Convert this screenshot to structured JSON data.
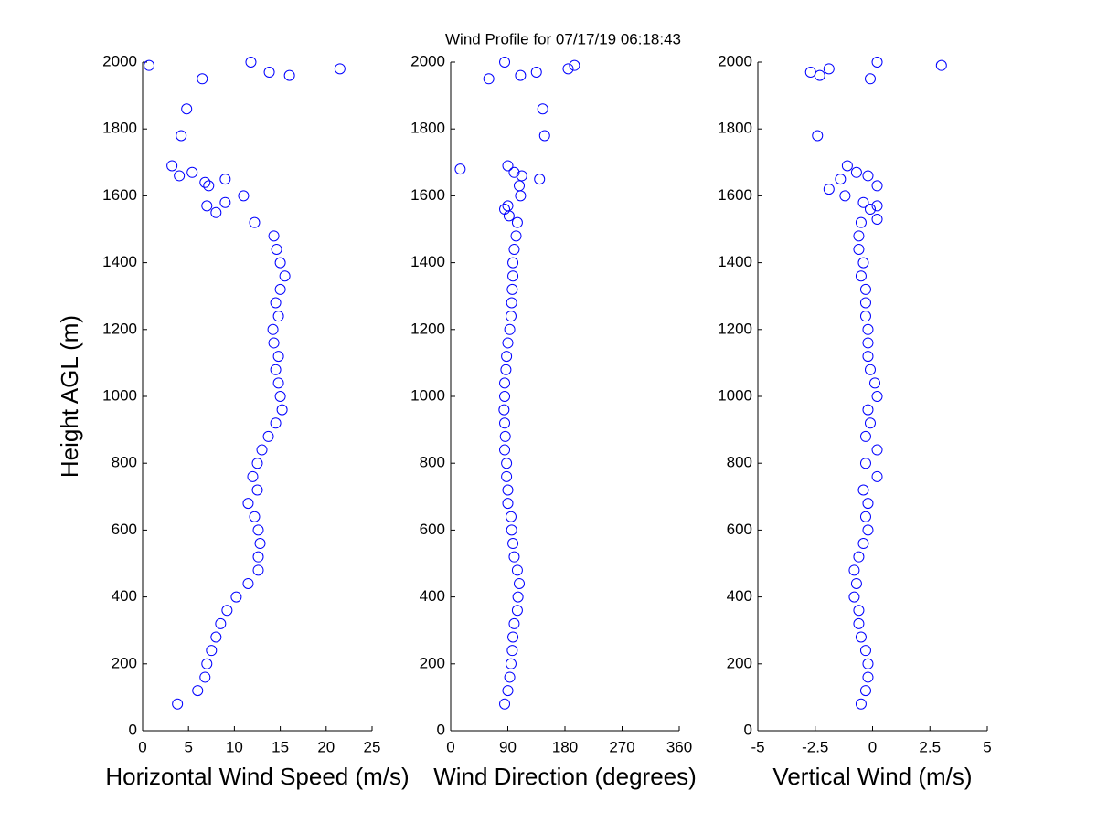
{
  "chart_data": [
    {
      "type": "scatter",
      "title": "Wind Profile for  07/17/19 06:18:43",
      "xlabel": "Horizontal Wind Speed (m/s)",
      "ylabel": "Height AGL (m)",
      "color": "#0000ff",
      "marker": "circle",
      "x": [
        3.8,
        6,
        6.8,
        7,
        7.5,
        8,
        8.5,
        9.2,
        10.2,
        11.5,
        12.6,
        12.6,
        12.8,
        12.6,
        12.2,
        11.5,
        12.5,
        12,
        12.5,
        13,
        13.7,
        14.5,
        15.2,
        15,
        14.8,
        14.5,
        14.8,
        14.3,
        14.2,
        14.8,
        14.5,
        15,
        15.5,
        15,
        14.6,
        14.3,
        12.2,
        8,
        7,
        9,
        11,
        7.2,
        6.8,
        9,
        4,
        5.4,
        3.2,
        4.2,
        4.8,
        6.5,
        16,
        13.8,
        21.5,
        0.7,
        11.8
      ],
      "y": [
        80,
        120,
        160,
        200,
        240,
        280,
        320,
        360,
        400,
        440,
        480,
        520,
        560,
        600,
        640,
        680,
        720,
        760,
        800,
        840,
        880,
        920,
        960,
        1000,
        1040,
        1080,
        1120,
        1160,
        1200,
        1240,
        1280,
        1320,
        1360,
        1400,
        1440,
        1480,
        1520,
        1550,
        1570,
        1580,
        1600,
        1630,
        1640,
        1650,
        1660,
        1670,
        1690,
        1780,
        1860,
        1950,
        1960,
        1970,
        1980,
        1990,
        2000
      ],
      "xlim": [
        0,
        25
      ],
      "xticks": [
        0,
        5,
        10,
        15,
        20,
        25
      ],
      "ylim": [
        0,
        2000
      ],
      "yticks": [
        0,
        200,
        400,
        600,
        800,
        1000,
        1200,
        1400,
        1600,
        1800,
        2000
      ]
    },
    {
      "type": "scatter",
      "xlabel": "Wind Direction (degrees)",
      "color": "#0000ff",
      "marker": "circle",
      "x": [
        85,
        90,
        93,
        95,
        97,
        98,
        100,
        105,
        106,
        108,
        105,
        100,
        98,
        96,
        95,
        90,
        90,
        88,
        88,
        85,
        86,
        85,
        84,
        85,
        85,
        87,
        88,
        90,
        93,
        95,
        96,
        97,
        98,
        98,
        100,
        103,
        105,
        92,
        85,
        90,
        110,
        108,
        140,
        112,
        100,
        15,
        90,
        148,
        145,
        60,
        110,
        135,
        185,
        195,
        85
      ],
      "y": [
        80,
        120,
        160,
        200,
        240,
        280,
        320,
        360,
        400,
        440,
        480,
        520,
        560,
        600,
        640,
        680,
        720,
        760,
        800,
        840,
        880,
        920,
        960,
        1000,
        1040,
        1080,
        1120,
        1160,
        1200,
        1240,
        1280,
        1320,
        1360,
        1400,
        1440,
        1480,
        1520,
        1540,
        1560,
        1570,
        1600,
        1630,
        1650,
        1660,
        1670,
        1680,
        1690,
        1780,
        1860,
        1950,
        1960,
        1970,
        1980,
        1990,
        2000
      ],
      "xlim": [
        0,
        360
      ],
      "xticks": [
        0,
        90,
        180,
        270,
        360
      ],
      "ylim": [
        0,
        2000
      ],
      "yticks": [
        0,
        200,
        400,
        600,
        800,
        1000,
        1200,
        1400,
        1600,
        1800,
        2000
      ]
    },
    {
      "type": "scatter",
      "xlabel": "Vertical Wind (m/s)",
      "color": "#0000ff",
      "marker": "circle",
      "x": [
        -0.5,
        -0.3,
        -0.2,
        -0.2,
        -0.3,
        -0.5,
        -0.6,
        -0.6,
        -0.8,
        -0.7,
        -0.8,
        -0.6,
        -0.4,
        -0.2,
        -0.3,
        -0.2,
        -0.4,
        0.2,
        -0.3,
        0.2,
        -0.3,
        -0.1,
        -0.2,
        0.2,
        0.1,
        -0.1,
        -0.2,
        -0.2,
        -0.2,
        -0.3,
        -0.3,
        -0.3,
        -0.5,
        -0.4,
        -0.6,
        -0.6,
        -0.5,
        0.2,
        -0.1,
        0.2,
        -0.4,
        -1.2,
        -1.9,
        0.2,
        -1.4,
        -0.2,
        -0.7,
        -1.1,
        -2.4,
        -0.1,
        -2.3,
        -2.7,
        -1.9,
        3,
        0.2
      ],
      "y": [
        80,
        120,
        160,
        200,
        240,
        280,
        320,
        360,
        400,
        440,
        480,
        520,
        560,
        600,
        640,
        680,
        720,
        760,
        800,
        840,
        880,
        920,
        960,
        1000,
        1040,
        1080,
        1120,
        1160,
        1200,
        1240,
        1280,
        1320,
        1360,
        1400,
        1440,
        1480,
        1520,
        1530,
        1560,
        1570,
        1580,
        1600,
        1620,
        1630,
        1650,
        1660,
        1670,
        1690,
        1780,
        1950,
        1960,
        1970,
        1980,
        1990,
        2000
      ],
      "xlim": [
        -5,
        5
      ],
      "xticks": [
        -5,
        -2.5,
        0,
        2.5,
        5
      ],
      "ylim": [
        0,
        2000
      ],
      "yticks": [
        0,
        200,
        400,
        600,
        800,
        1000,
        1200,
        1400,
        1600,
        1800,
        2000
      ]
    }
  ]
}
